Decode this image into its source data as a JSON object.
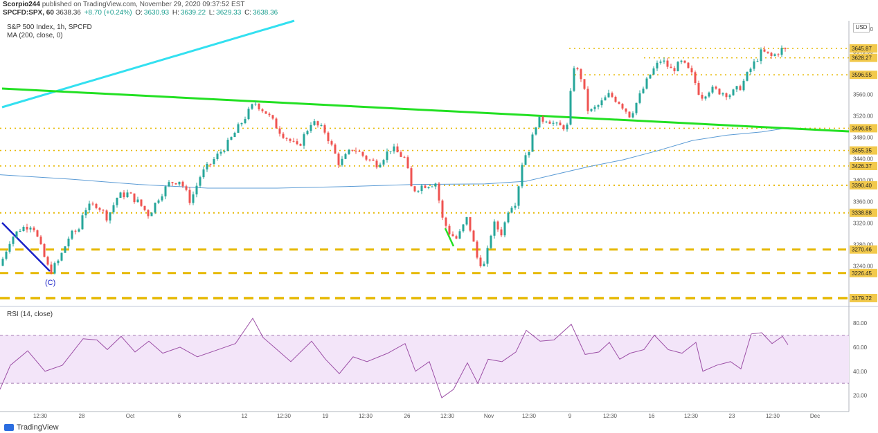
{
  "header": {
    "author": "Scorpio244",
    "published_text": "published on TradingView.com, November 29, 2020 09:37:52 EST",
    "symbol": "SPCFD:SPX, 60",
    "last": "3638.36",
    "change": "+8.70 (+0.24%)",
    "o_label": "O:",
    "o": "3630.93",
    "h_label": "H:",
    "h": "3639.22",
    "l_label": "L:",
    "l": "3629.33",
    "c_label": "C:",
    "c": "3638.36"
  },
  "legend": {
    "title": "S&P 500 Index, 1h, SPCFD",
    "ma": "MA (200, close, 0)",
    "rsi": "RSI (14, close)",
    "currency": "USD"
  },
  "colors": {
    "up": "#26a69a",
    "down": "#ef5350",
    "ma": "#5b9bd5",
    "trend_green": "#22e022",
    "trend_cyan": "#33e0f0",
    "trend_blue": "#1a22c8",
    "level": "#e6b800",
    "rsi_line": "#9c4fa6",
    "rsi_band": "#f3e5f9",
    "badge": "#f2c94c"
  },
  "wave_label": "(C)",
  "footer": {
    "brand": "TradingView"
  },
  "chart_data": [
    {
      "type": "candlestick",
      "title": "S&P 500 Index, 1h, SPCFD",
      "ylim": [
        3170,
        3665
      ],
      "y_ticks": [
        3240,
        3280,
        3320,
        3360,
        3400,
        3440,
        3480,
        3520,
        3560,
        3600,
        3640
      ],
      "y_tick_labels": [
        "3240.00",
        "3280.00",
        "3320.00",
        "3360.00",
        "3400.00",
        "3440.00",
        "3480.00",
        "3520.00",
        "3560.00",
        "",
        "3640.00"
      ],
      "top_tick_label": "3680.00",
      "x_tick_labels": [
        "12:30",
        "28",
        "Oct",
        "6",
        "12",
        "12:30",
        "19",
        "12:30",
        "26",
        "12:30",
        "Nov",
        "12:30",
        "9",
        "12:30",
        "16",
        "12:30",
        "23",
        "12:30",
        "Dec"
      ],
      "levels": [
        {
          "value": 3645.87,
          "label": "3645.87"
        },
        {
          "value": 3628.27,
          "label": "3628.27"
        },
        {
          "value": 3596.55,
          "label": "3596.55"
        },
        {
          "value": 3496.85,
          "label": "3496.85"
        },
        {
          "value": 3455.35,
          "label": "3455.35"
        },
        {
          "value": 3426.37,
          "label": "3426.37"
        },
        {
          "value": 3390.4,
          "label": "3390.40"
        },
        {
          "value": 3338.88,
          "label": "3338.88"
        },
        {
          "value": 3270.46,
          "label": "3270.46"
        },
        {
          "value": 3226.45,
          "label": "3226.45"
        },
        {
          "value": 3179.72,
          "label": "3179.72"
        }
      ],
      "price_path": [
        [
          0,
          3240
        ],
        [
          15,
          3290
        ],
        [
          30,
          3310
        ],
        [
          47,
          3318
        ],
        [
          60,
          3270
        ],
        [
          72,
          3228
        ],
        [
          85,
          3250
        ],
        [
          100,
          3295
        ],
        [
          115,
          3310
        ],
        [
          120,
          3345
        ],
        [
          140,
          3355
        ],
        [
          155,
          3330
        ],
        [
          170,
          3370
        ],
        [
          185,
          3375
        ],
        [
          200,
          3358
        ],
        [
          215,
          3335
        ],
        [
          230,
          3370
        ],
        [
          245,
          3395
        ],
        [
          260,
          3400
        ],
        [
          275,
          3360
        ],
        [
          290,
          3410
        ],
        [
          310,
          3440
        ],
        [
          330,
          3470
        ],
        [
          350,
          3510
        ],
        [
          368,
          3545
        ],
        [
          385,
          3525
        ],
        [
          405,
          3490
        ],
        [
          430,
          3460
        ],
        [
          450,
          3510
        ],
        [
          470,
          3490
        ],
        [
          490,
          3430
        ],
        [
          510,
          3460
        ],
        [
          530,
          3440
        ],
        [
          545,
          3430
        ],
        [
          565,
          3460
        ],
        [
          585,
          3440
        ],
        [
          595,
          3380
        ],
        [
          610,
          3390
        ],
        [
          630,
          3395
        ],
        [
          638,
          3330
        ],
        [
          650,
          3300
        ],
        [
          660,
          3290
        ],
        [
          675,
          3330
        ],
        [
          690,
          3250
        ],
        [
          700,
          3240
        ],
        [
          712,
          3320
        ],
        [
          725,
          3300
        ],
        [
          735,
          3350
        ],
        [
          745,
          3360
        ],
        [
          755,
          3440
        ],
        [
          765,
          3460
        ],
        [
          775,
          3510
        ],
        [
          790,
          3515
        ],
        [
          805,
          3500
        ],
        [
          822,
          3500
        ],
        [
          826,
          3620
        ],
        [
          840,
          3590
        ],
        [
          850,
          3525
        ],
        [
          865,
          3540
        ],
        [
          880,
          3560
        ],
        [
          895,
          3545
        ],
        [
          910,
          3520
        ],
        [
          925,
          3560
        ],
        [
          940,
          3600
        ],
        [
          955,
          3625
        ],
        [
          970,
          3605
        ],
        [
          985,
          3620
        ],
        [
          1000,
          3595
        ],
        [
          1012,
          3555
        ],
        [
          1025,
          3570
        ],
        [
          1040,
          3565
        ],
        [
          1055,
          3560
        ],
        [
          1070,
          3575
        ],
        [
          1085,
          3610
        ],
        [
          1100,
          3640
        ],
        [
          1115,
          3630
        ],
        [
          1130,
          3645
        ],
        [
          1140,
          3638
        ]
      ],
      "ma200_path": [
        [
          0,
          3410
        ],
        [
          100,
          3402
        ],
        [
          200,
          3392
        ],
        [
          300,
          3385
        ],
        [
          400,
          3385
        ],
        [
          500,
          3388
        ],
        [
          600,
          3392
        ],
        [
          700,
          3393
        ],
        [
          760,
          3398
        ],
        [
          800,
          3410
        ],
        [
          850,
          3425
        ],
        [
          900,
          3438
        ],
        [
          950,
          3455
        ],
        [
          1000,
          3474
        ],
        [
          1050,
          3484
        ],
        [
          1100,
          3490
        ],
        [
          1140,
          3498
        ]
      ]
    },
    {
      "type": "line",
      "title": "RSI (14, close)",
      "ylim": [
        10,
        95
      ],
      "y_ticks": [
        20,
        40,
        60,
        80
      ],
      "y_tick_labels": [
        "20.00",
        "40.00",
        "60.00",
        "80.00"
      ],
      "band": [
        30,
        70
      ],
      "rsi_path": [
        [
          0,
          25
        ],
        [
          15,
          45
        ],
        [
          40,
          57
        ],
        [
          65,
          40
        ],
        [
          90,
          45
        ],
        [
          120,
          67
        ],
        [
          140,
          66
        ],
        [
          155,
          58
        ],
        [
          175,
          69
        ],
        [
          195,
          56
        ],
        [
          215,
          65
        ],
        [
          235,
          55
        ],
        [
          260,
          60
        ],
        [
          285,
          52
        ],
        [
          310,
          57
        ],
        [
          340,
          63
        ],
        [
          365,
          84
        ],
        [
          380,
          68
        ],
        [
          400,
          58
        ],
        [
          420,
          48
        ],
        [
          450,
          65
        ],
        [
          470,
          50
        ],
        [
          490,
          38
        ],
        [
          510,
          52
        ],
        [
          530,
          48
        ],
        [
          560,
          55
        ],
        [
          585,
          63
        ],
        [
          600,
          40
        ],
        [
          620,
          48
        ],
        [
          638,
          18
        ],
        [
          655,
          25
        ],
        [
          675,
          47
        ],
        [
          690,
          30
        ],
        [
          705,
          50
        ],
        [
          725,
          48
        ],
        [
          745,
          56
        ],
        [
          760,
          74
        ],
        [
          780,
          65
        ],
        [
          800,
          66
        ],
        [
          825,
          79
        ],
        [
          845,
          54
        ],
        [
          865,
          56
        ],
        [
          880,
          64
        ],
        [
          895,
          50
        ],
        [
          910,
          55
        ],
        [
          930,
          58
        ],
        [
          945,
          70
        ],
        [
          965,
          58
        ],
        [
          985,
          55
        ],
        [
          1005,
          64
        ],
        [
          1015,
          40
        ],
        [
          1035,
          45
        ],
        [
          1055,
          48
        ],
        [
          1070,
          42
        ],
        [
          1085,
          71
        ],
        [
          1100,
          72
        ],
        [
          1115,
          63
        ],
        [
          1130,
          69
        ],
        [
          1138,
          62
        ]
      ]
    }
  ]
}
